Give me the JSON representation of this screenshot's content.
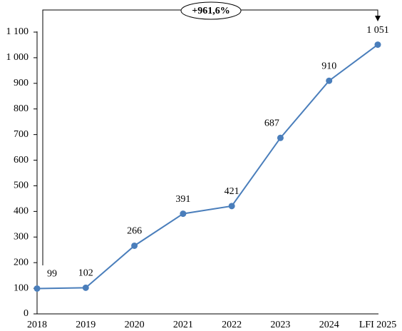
{
  "chart_data": {
    "type": "line",
    "annotation": "+961,6%",
    "categories": [
      "2018",
      "2019",
      "2020",
      "2021",
      "2022",
      "2023",
      "2024",
      "LFI 2025"
    ],
    "values": [
      99,
      102,
      266,
      391,
      421,
      687,
      910,
      1051
    ],
    "value_labels": [
      "99",
      "102",
      "266",
      "391",
      "421",
      "687",
      "910",
      "1 051"
    ],
    "color": "#4a7ebb",
    "ylim": [
      0,
      1100
    ],
    "yticks": [
      0,
      100,
      200,
      300,
      400,
      500,
      600,
      700,
      800,
      900,
      {
        "value": 1000,
        "label": "1 000"
      },
      {
        "value": 1100,
        "label": "1 100"
      }
    ],
    "grid": false
  }
}
